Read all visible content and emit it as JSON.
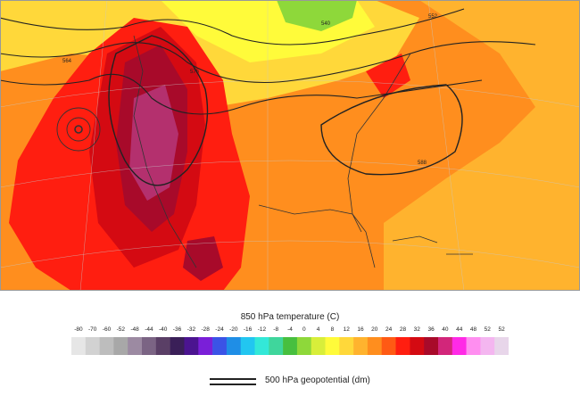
{
  "legend": {
    "title": "850 hPa temperature (C)",
    "ticks": [
      "-80",
      "-70",
      "-60",
      "-52",
      "-48",
      "-44",
      "-40",
      "-36",
      "-32",
      "-28",
      "-24",
      "-20",
      "-16",
      "-12",
      "-8",
      "-4",
      "0",
      "4",
      "8",
      "12",
      "16",
      "20",
      "24",
      "28",
      "32",
      "36",
      "40",
      "44",
      "48",
      "52",
      "52"
    ],
    "colors": [
      "#e6e6e6",
      "#d2d2d2",
      "#bdbdbd",
      "#a8a8a8",
      "#9c8aa2",
      "#7b6484",
      "#5a3f66",
      "#3a1f58",
      "#4b1490",
      "#7a1fd8",
      "#3b53e6",
      "#1f8ee6",
      "#22c6f0",
      "#33e8d8",
      "#3fd69c",
      "#47bf3f",
      "#8ed83a",
      "#d8ee3a",
      "#fffb3a",
      "#ffd83a",
      "#ffb32e",
      "#ff8e1e",
      "#ff5a14",
      "#ff1e10",
      "#d40a12",
      "#a80a2a",
      "#d2267a",
      "#ff2ae6",
      "#ff8ef0",
      "#f4b6f0",
      "#e8d6ea"
    ]
  },
  "contour_legend": {
    "label": "500 hPa geopotential (dm)"
  },
  "contour_labels": [
    "540",
    "552",
    "564",
    "576",
    "588"
  ],
  "colors": {
    "hot_red": "#ff1e10",
    "magenta": "#b4306e",
    "orange": "#ff8e1e",
    "light_orange": "#ffb32e",
    "yellow": "#fffb3a",
    "green": "#8ed83a"
  }
}
